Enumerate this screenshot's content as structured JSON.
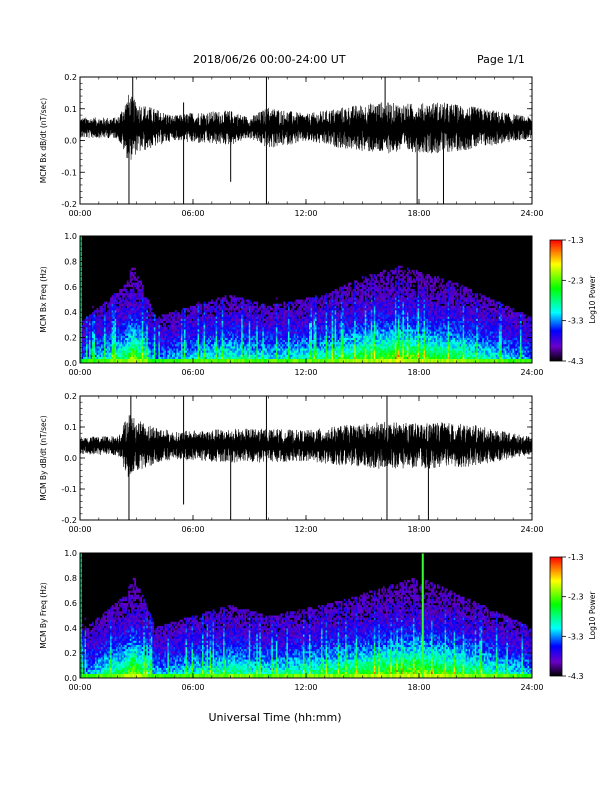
{
  "header": {
    "title": "2018/06/26  00:00-24:00 UT",
    "page": "Page 1/1"
  },
  "x_axis": {
    "label": "Universal Time (hh:mm)",
    "tick_labels": [
      "00:00",
      "06:00",
      "12:00",
      "18:00",
      "24:00"
    ]
  },
  "colorbar": {
    "label": "Log10 Power",
    "tick_labels": [
      "-1.3",
      "-2.3",
      "-3.3",
      "-4.3"
    ],
    "colors": [
      "#ff0000",
      "#ffff00",
      "#00ff00",
      "#00ffff",
      "#0000ff",
      "#6a00c8",
      "#000000"
    ]
  },
  "chart_data": [
    {
      "type": "line",
      "ylabel": "MCM Bx dB/dt (nT/sec)",
      "xlim": [
        0,
        24
      ],
      "ylim": [
        -0.2,
        0.2
      ],
      "y_tick_labels": [
        "0.2",
        "0.1",
        "0.0",
        "-0.1",
        "-0.2"
      ],
      "baseline": 0.04,
      "noise_envelope": [
        [
          0,
          0.06
        ],
        [
          2,
          0.06
        ],
        [
          2.6,
          0.2
        ],
        [
          3,
          0.15
        ],
        [
          5,
          0.07
        ],
        [
          6,
          0.09
        ],
        [
          8,
          0.1
        ],
        [
          9,
          0.06
        ],
        [
          10,
          0.12
        ],
        [
          12,
          0.08
        ],
        [
          14,
          0.12
        ],
        [
          16,
          0.15
        ],
        [
          17,
          0.14
        ],
        [
          18,
          0.14
        ],
        [
          19,
          0.15
        ],
        [
          21,
          0.12
        ],
        [
          24,
          0.06
        ]
      ],
      "spikes": [
        [
          2.6,
          -0.2
        ],
        [
          2.8,
          0.2
        ],
        [
          5.5,
          0.12
        ],
        [
          5.5,
          -0.2
        ],
        [
          8,
          -0.13
        ],
        [
          9.9,
          -0.2
        ],
        [
          9.9,
          0.2
        ],
        [
          16.2,
          0.2
        ],
        [
          17.9,
          -0.2
        ],
        [
          19.3,
          -0.2
        ]
      ]
    },
    {
      "type": "heatmap",
      "ylabel": "MCM Bx Freq (Hz)",
      "xlim": [
        0,
        24
      ],
      "ylim": [
        0.0,
        1.0
      ],
      "y_tick_labels": [
        "1.0",
        "0.8",
        "0.6",
        "0.4",
        "0.2",
        "0.0"
      ],
      "color_range": [
        -4.3,
        -1.3
      ],
      "activity_profile": [
        [
          0,
          0.35
        ],
        [
          2.5,
          0.7
        ],
        [
          2.8,
          0.9
        ],
        [
          4,
          0.4
        ],
        [
          6,
          0.5
        ],
        [
          8,
          0.6
        ],
        [
          10,
          0.5
        ],
        [
          13,
          0.6
        ],
        [
          15,
          0.75
        ],
        [
          17,
          0.85
        ],
        [
          18,
          0.8
        ],
        [
          20,
          0.7
        ],
        [
          22,
          0.55
        ],
        [
          24,
          0.4
        ]
      ]
    },
    {
      "type": "line",
      "ylabel": "MCM By dB/dt (nT/sec)",
      "xlim": [
        0,
        24
      ],
      "ylim": [
        -0.2,
        0.2
      ],
      "y_tick_labels": [
        "0.2",
        "0.1",
        "0.0",
        "-0.1",
        "-0.2"
      ],
      "baseline": 0.04,
      "noise_envelope": [
        [
          0,
          0.05
        ],
        [
          2,
          0.06
        ],
        [
          2.6,
          0.2
        ],
        [
          3,
          0.15
        ],
        [
          5,
          0.08
        ],
        [
          6,
          0.09
        ],
        [
          8,
          0.1
        ],
        [
          10,
          0.1
        ],
        [
          12,
          0.09
        ],
        [
          14,
          0.12
        ],
        [
          16,
          0.14
        ],
        [
          18,
          0.13
        ],
        [
          19,
          0.14
        ],
        [
          21,
          0.12
        ],
        [
          24,
          0.05
        ]
      ],
      "spikes": [
        [
          2.6,
          -0.2
        ],
        [
          2.7,
          0.2
        ],
        [
          5.5,
          0.2
        ],
        [
          5.5,
          -0.15
        ],
        [
          8,
          -0.2
        ],
        [
          9.9,
          -0.2
        ],
        [
          9.9,
          0.2
        ],
        [
          16.3,
          -0.2
        ],
        [
          16.3,
          0.2
        ],
        [
          18.5,
          -0.2
        ]
      ]
    },
    {
      "type": "heatmap",
      "ylabel": "MCM By Freq (Hz)",
      "xlim": [
        0,
        24
      ],
      "ylim": [
        0.0,
        1.0
      ],
      "y_tick_labels": [
        "1.0",
        "0.8",
        "0.6",
        "0.4",
        "0.2",
        "0.0"
      ],
      "color_range": [
        -4.3,
        -1.3
      ],
      "activity_profile": [
        [
          0,
          0.4
        ],
        [
          2.5,
          0.75
        ],
        [
          2.8,
          0.95
        ],
        [
          4,
          0.45
        ],
        [
          6,
          0.55
        ],
        [
          8,
          0.65
        ],
        [
          10,
          0.55
        ],
        [
          13,
          0.65
        ],
        [
          15,
          0.75
        ],
        [
          17,
          0.85
        ],
        [
          18,
          0.9
        ],
        [
          20,
          0.75
        ],
        [
          22,
          0.6
        ],
        [
          24,
          0.45
        ]
      ],
      "vertical_lines": [
        18.2
      ]
    }
  ]
}
